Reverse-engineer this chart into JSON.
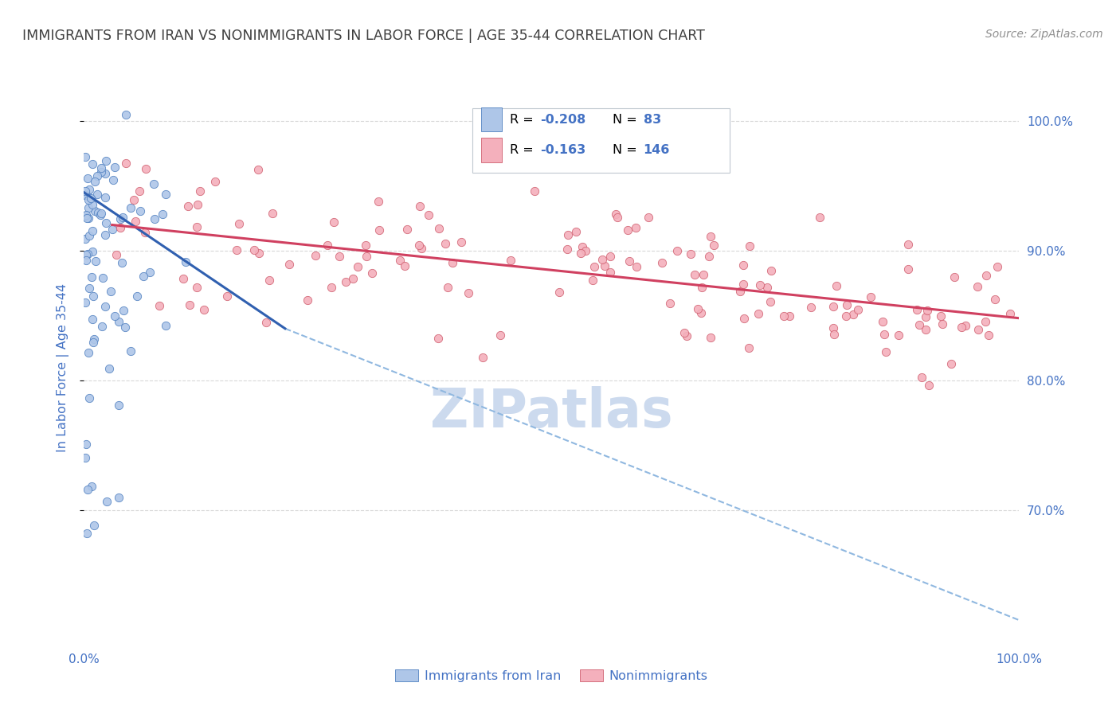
{
  "title": "IMMIGRANTS FROM IRAN VS NONIMMIGRANTS IN LABOR FORCE | AGE 35-44 CORRELATION CHART",
  "source": "Source: ZipAtlas.com",
  "ylabel": "In Labor Force | Age 35-44",
  "xlim": [
    0.0,
    1.0
  ],
  "ylim": [
    0.595,
    1.025
  ],
  "scatter_blue_color": "#aec6e8",
  "scatter_blue_edge": "#5080c0",
  "scatter_pink_color": "#f4b0bc",
  "scatter_pink_edge": "#d06070",
  "trend_blue_color": "#3060b0",
  "trend_pink_color": "#d04060",
  "trend_dashed_color": "#90b8e0",
  "watermark_color": "#ccdaee",
  "title_color": "#404040",
  "source_color": "#909090",
  "axis_label_color": "#4472c4",
  "background_color": "#ffffff",
  "grid_color": "#d8d8d8",
  "legend_text_color": "#000000",
  "legend_value_color": "#4472c4",
  "seed": 42,
  "n_blue": 83,
  "n_pink": 146,
  "r_blue": -0.208,
  "r_pink": -0.163,
  "blue_trend_x_start": 0.0,
  "blue_trend_x_end": 0.215,
  "blue_trend_y_start": 0.945,
  "blue_trend_y_end": 0.84,
  "dashed_trend_x_start": 0.215,
  "dashed_trend_x_end": 1.0,
  "dashed_trend_y_start": 0.84,
  "dashed_trend_y_end": 0.615,
  "pink_trend_x_start": 0.03,
  "pink_trend_x_end": 1.0,
  "pink_trend_y_start": 0.92,
  "pink_trend_y_end": 0.848
}
